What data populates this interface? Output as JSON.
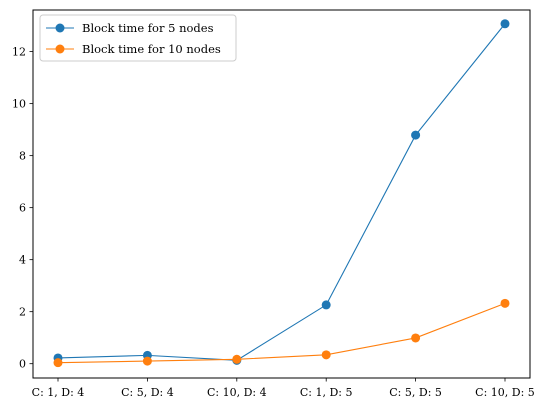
{
  "chart_data": {
    "type": "line",
    "title": "",
    "xlabel": "",
    "ylabel": "",
    "categories": [
      "C: 1, D: 4",
      "C: 5, D: 4",
      "C: 10, D: 4",
      "C: 1, D: 5",
      "C: 5, D: 5",
      "C: 10, D: 5"
    ],
    "ylim": [
      -0.55,
      13.6
    ],
    "yticks": [
      0,
      2,
      4,
      6,
      8,
      10,
      12
    ],
    "grid": false,
    "legend_position": "top-left",
    "series": [
      {
        "name": "Block time for 5 nodes",
        "color": "#1f77b4",
        "marker": "circle",
        "values": [
          0.22,
          0.32,
          0.13,
          2.26,
          8.79,
          13.07
        ]
      },
      {
        "name": "Block time for 10 nodes",
        "color": "#ff7f0e",
        "marker": "circle",
        "values": [
          0.04,
          0.1,
          0.17,
          0.34,
          0.99,
          2.32
        ]
      }
    ]
  }
}
